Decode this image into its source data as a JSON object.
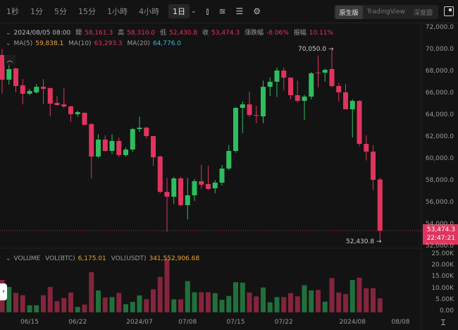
{
  "toolbar": {
    "intervals": [
      "1秒",
      "1分",
      "5分",
      "15分",
      "1小時",
      "4小時"
    ],
    "active_interval": "1日",
    "views": [
      "原生版",
      "TradingView",
      "深度圖"
    ],
    "active_view": "原生版"
  },
  "info": {
    "datetime": "2024/08/05 08:00",
    "open_label": "開",
    "open": "58,161.3",
    "high_label": "高",
    "high": "58,310.0",
    "low_label": "低",
    "low": "52,430.8",
    "close_label": "收",
    "close": "53,474.3",
    "change_label": "漲跌幅",
    "change": "-8.06%",
    "amp_label": "振幅",
    "amp": "10.11%"
  },
  "ma": {
    "ma5_label": "MA(5)",
    "ma5": "59,838.1",
    "ma10_label": "MA(10)",
    "ma10": "63,293.3",
    "ma20_label": "MA(20)",
    "ma20": "64,776.0"
  },
  "volume_info": {
    "label": "VOLUME",
    "btc_label": "VOL(BTC)",
    "btc": "6,175.01",
    "usdt_label": "VOL(USDT)",
    "usdt": "341,552,906.68"
  },
  "last_price": {
    "price": "53,474.3",
    "countdown": "22:47:21"
  },
  "markers": {
    "high": "70,050.0 →",
    "low": "52,430.8 →"
  },
  "colors": {
    "up": "#2ebd5f",
    "down": "#e0345f",
    "bg": "#131313"
  },
  "chart_data": {
    "type": "candlestick",
    "start_date": "2024-06-11",
    "price_ticks": [
      "72,000.0",
      "70,000.0",
      "68,000.0",
      "66,000.0",
      "64,000.0",
      "62,000.0",
      "60,000.0",
      "58,000.0",
      "56,000.0",
      "54,000.0",
      "52,000.0"
    ],
    "price_tick_values": [
      72000,
      70000,
      68000,
      66000,
      64000,
      62000,
      60000,
      58000,
      56000,
      54000,
      52000
    ],
    "volume_ticks": [
      "25.00K",
      "20.00K",
      "15.00K",
      "10.00K",
      "5.00K",
      "0.00"
    ],
    "volume_tick_values": [
      25,
      20,
      15,
      10,
      5,
      0
    ],
    "date_ticks": [
      {
        "label": "06/15",
        "index": 4
      },
      {
        "label": "06/22",
        "index": 11
      },
      {
        "label": "2024/07",
        "index": 20
      },
      {
        "label": "07/08",
        "index": 27
      },
      {
        "label": "07/15",
        "index": 34
      },
      {
        "label": "07/22",
        "index": 41
      },
      {
        "label": "2024/08",
        "index": 51
      },
      {
        "label": "08/08",
        "index": 58
      }
    ],
    "ylim": [
      52000,
      72000
    ],
    "vol_ylim": [
      0,
      25
    ],
    "ohlc": [
      [
        69550,
        70100,
        66000,
        67290
      ],
      [
        67290,
        68650,
        66840,
        68260
      ],
      [
        68320,
        68400,
        66130,
        66710
      ],
      [
        66770,
        67350,
        65030,
        66000
      ],
      [
        66000,
        66450,
        65870,
        66260
      ],
      [
        66130,
        66900,
        66000,
        66640
      ],
      [
        66640,
        67350,
        65030,
        66450
      ],
      [
        66520,
        66580,
        63930,
        65100
      ],
      [
        65160,
        65800,
        64900,
        64970
      ],
      [
        65030,
        66520,
        64700,
        64840
      ],
      [
        64840,
        64900,
        63420,
        64130
      ],
      [
        64130,
        64450,
        63900,
        64320
      ],
      [
        64260,
        64300,
        63160,
        63160
      ],
      [
        63230,
        63300,
        58260,
        60260
      ],
      [
        60260,
        62300,
        60100,
        61810
      ],
      [
        61810,
        62200,
        60700,
        60770
      ],
      [
        60770,
        62300,
        60500,
        61680
      ],
      [
        61680,
        62000,
        60200,
        60390
      ],
      [
        60390,
        61100,
        60250,
        60900
      ],
      [
        60900,
        62900,
        60700,
        62770
      ],
      [
        62770,
        63900,
        62500,
        62900
      ],
      [
        62900,
        63000,
        61900,
        62130
      ],
      [
        62130,
        62150,
        59400,
        60190
      ],
      [
        60260,
        60350,
        56900,
        57030
      ],
      [
        57030,
        58300,
        53400,
        56580
      ],
      [
        56580,
        58400,
        55900,
        58260
      ],
      [
        58260,
        58400,
        55700,
        55810
      ],
      [
        55810,
        58300,
        54500,
        56710
      ],
      [
        56710,
        58200,
        56200,
        58000
      ],
      [
        58000,
        59500,
        57300,
        57680
      ],
      [
        57740,
        59400,
        57200,
        57290
      ],
      [
        57350,
        58100,
        56900,
        57870
      ],
      [
        57870,
        59500,
        57600,
        59160
      ],
      [
        59160,
        61300,
        59000,
        60770
      ],
      [
        60770,
        64800,
        60600,
        64710
      ],
      [
        64710,
        65300,
        62400,
        65030
      ],
      [
        65030,
        66190,
        63900,
        64060
      ],
      [
        64060,
        64900,
        63300,
        63990
      ],
      [
        63930,
        67200,
        63300,
        66640
      ],
      [
        66640,
        67500,
        65800,
        67100
      ],
      [
        67100,
        68400,
        65700,
        68130
      ],
      [
        68130,
        68400,
        66300,
        67480
      ],
      [
        67480,
        67500,
        65500,
        65870
      ],
      [
        65870,
        67200,
        65200,
        65350
      ],
      [
        65350,
        65900,
        63600,
        65740
      ],
      [
        65740,
        68000,
        65500,
        67870
      ],
      [
        67940,
        69500,
        66600,
        67930
      ],
      [
        67930,
        68300,
        67100,
        68190
      ],
      [
        68260,
        70050,
        66600,
        66710
      ],
      [
        66710,
        67000,
        65300,
        66130
      ],
      [
        66130,
        66900,
        64700,
        64580
      ],
      [
        64580,
        65500,
        62000,
        65350
      ],
      [
        65350,
        65400,
        61200,
        61420
      ],
      [
        61420,
        62200,
        59900,
        60710
      ],
      [
        60710,
        61300,
        57200,
        58130
      ],
      [
        58161,
        58310,
        52430,
        53474
      ]
    ],
    "volume_k": [
      14.2,
      11.1,
      8.5,
      7.5,
      3.1,
      3.1,
      7.5,
      11.1,
      4.9,
      6.3,
      8.7,
      2.4,
      3.4,
      17.6,
      9.6,
      6.5,
      6.7,
      8.5,
      3.6,
      4.6,
      7.4,
      5.8,
      10.1,
      15.5,
      23.5,
      5.7,
      5.7,
      13.7,
      8.8,
      8.8,
      8.8,
      8.4,
      5.5,
      7.2,
      13.2,
      13.0,
      8.7,
      7.0,
      10.9,
      4.4,
      6.7,
      6.7,
      8.4,
      7.0,
      11.9,
      9.6,
      9.8,
      4.7,
      15.0,
      8.7,
      8.0,
      14.2,
      15.2,
      10.6,
      10.6,
      6.18
    ]
  }
}
